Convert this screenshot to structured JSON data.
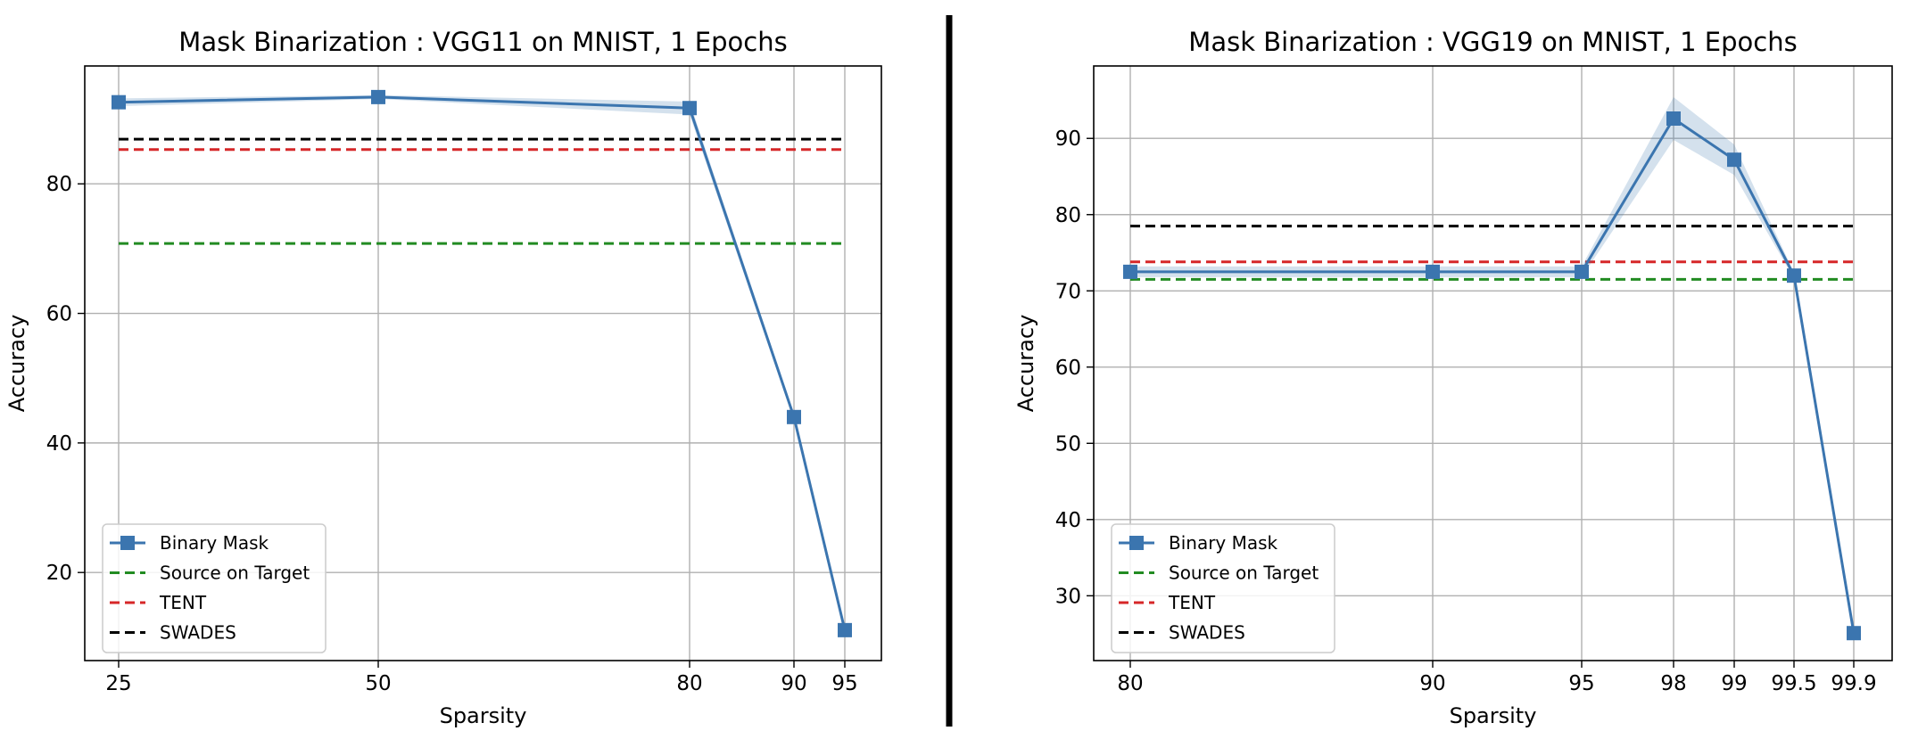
{
  "chart_data": [
    {
      "type": "line",
      "title": "Mask Binarization : VGG11 on MNIST, 1 Epochs",
      "xlabel": "Sparsity",
      "ylabel": "Accuracy",
      "x_scale": "categorical-spaced",
      "x": [
        25,
        50,
        80,
        90,
        95
      ],
      "x_tick_labels": [
        "25",
        "50",
        "80",
        "90",
        "95"
      ],
      "y_ticks": [
        20,
        40,
        60,
        80
      ],
      "ylim": [
        6.4,
        98.2
      ],
      "grid": true,
      "legend_position": "lower-left",
      "series": [
        {
          "name": "Binary Mask",
          "style": "solid-square-marker",
          "color": "#3b75af",
          "values": [
            92.6,
            93.4,
            91.7,
            44.0,
            11.1
          ],
          "band_low": [
            92.0,
            93.1,
            90.7,
            43.5,
            10.7
          ],
          "band_high": [
            93.2,
            93.7,
            92.7,
            44.5,
            11.5
          ]
        },
        {
          "name": "Source on Target",
          "style": "dashed",
          "color": "#228b22",
          "value": 70.8
        },
        {
          "name": "TENT",
          "style": "dashed",
          "color": "#d62728",
          "value": 85.3
        },
        {
          "name": "SWADES",
          "style": "dashed",
          "color": "#000000",
          "value": 86.9
        }
      ]
    },
    {
      "type": "line",
      "title": "Mask Binarization : VGG19 on MNIST, 1 Epochs",
      "xlabel": "Sparsity",
      "ylabel": "Accuracy",
      "x_scale": "categorical-spaced",
      "x": [
        80,
        90,
        95,
        98,
        99,
        99.5,
        99.9
      ],
      "x_tick_labels": [
        "80",
        "90",
        "95",
        "98",
        "99",
        "99.5",
        "99.9"
      ],
      "y_ticks": [
        30,
        40,
        50,
        60,
        70,
        80,
        90
      ],
      "ylim": [
        21.5,
        99.5
      ],
      "grid": true,
      "legend_position": "lower-left",
      "series": [
        {
          "name": "Binary Mask",
          "style": "solid-square-marker",
          "color": "#3b75af",
          "values": [
            72.5,
            72.5,
            72.5,
            92.6,
            87.2,
            72.0,
            25.1
          ],
          "band_low": [
            71.8,
            71.8,
            71.8,
            89.8,
            85.2,
            71.6,
            24.9
          ],
          "band_high": [
            73.2,
            73.2,
            73.2,
            95.4,
            89.2,
            72.4,
            25.3
          ]
        },
        {
          "name": "Source on Target",
          "style": "dashed",
          "color": "#228b22",
          "value": 71.5
        },
        {
          "name": "TENT",
          "style": "dashed",
          "color": "#d62728",
          "value": 73.8
        },
        {
          "name": "SWADES",
          "style": "dashed",
          "color": "#000000",
          "value": 78.5
        }
      ]
    }
  ]
}
